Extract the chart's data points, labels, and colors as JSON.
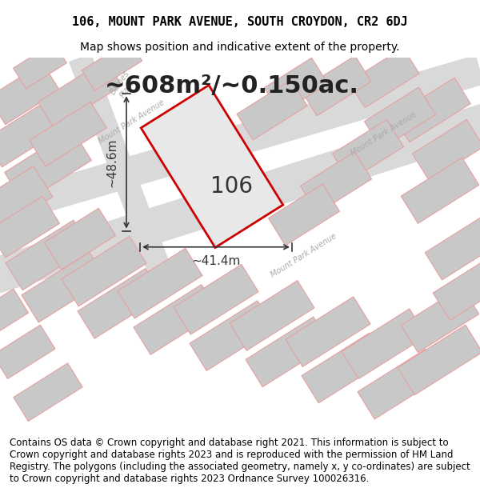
{
  "title_line1": "106, MOUNT PARK AVENUE, SOUTH CROYDON, CR2 6DJ",
  "title_line2": "Map shows position and indicative extent of the property.",
  "area_text": "~608m²/~0.150ac.",
  "label_106": "106",
  "dim_width": "~41.4m",
  "dim_height": "~48.6m",
  "footer_text": "Contains OS data © Crown copyright and database right 2021. This information is subject to Crown copyright and database rights 2023 and is reproduced with the permission of HM Land Registry. The polygons (including the associated geometry, namely x, y co-ordinates) are subject to Crown copyright and database rights 2023 Ordnance Survey 100026316.",
  "bg_color": "#e8e8e8",
  "map_bg": "#d9d9d9",
  "block_color": "#c8c8c8",
  "road_color": "#f0f0f0",
  "line_color_light": "#e8a0a0",
  "highlight_color": "#cc0000",
  "highlight_fill": "#e8e8e8",
  "street_label_color": "#888888",
  "title_fontsize": 11,
  "subtitle_fontsize": 10,
  "area_fontsize": 22,
  "label_fontsize": 20,
  "dim_fontsize": 11,
  "footer_fontsize": 8.5
}
